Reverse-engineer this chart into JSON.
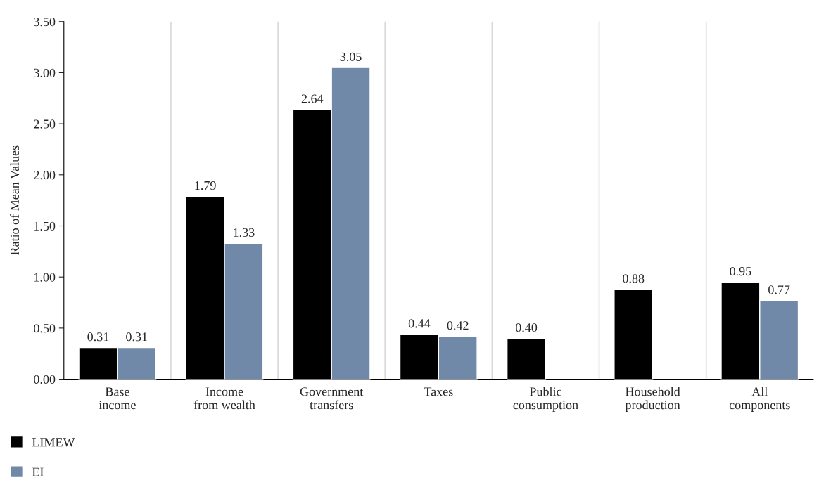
{
  "chart_data": {
    "type": "bar",
    "ylabel": "Ratio of Mean Values",
    "categories": [
      "Base\nincome",
      "Income\nfrom wealth",
      "Government\ntransfers",
      "Taxes",
      "Public\nconsumption",
      "Household\nproduction",
      "All\ncomponents"
    ],
    "series": [
      {
        "name": "LIMEW",
        "color": "#000000",
        "values": [
          0.31,
          1.79,
          2.64,
          0.44,
          0.4,
          0.88,
          0.95
        ],
        "value_labels": [
          "0.31",
          "1.79",
          "2.64",
          "0.44",
          "0.40",
          "0.88",
          "0.95"
        ]
      },
      {
        "name": "EI",
        "color": "#7189a8",
        "values": [
          0.31,
          1.33,
          3.05,
          0.42,
          null,
          null,
          0.77
        ],
        "value_labels": [
          "0.31",
          "1.33",
          "3.05",
          "0.42",
          null,
          null,
          "0.77"
        ]
      }
    ],
    "ylim": [
      0,
      3.5
    ],
    "yticks": [
      {
        "value": 0,
        "label": "0.00"
      },
      {
        "value": 0.5,
        "label": "0.50"
      },
      {
        "value": 1,
        "label": "1.00"
      },
      {
        "value": 1.5,
        "label": "1.50"
      },
      {
        "value": 2,
        "label": "2.00"
      },
      {
        "value": 2.5,
        "label": "2.50"
      },
      {
        "value": 3,
        "label": "3.00"
      },
      {
        "value": 3.5,
        "label": "3.50"
      }
    ],
    "grid": "x",
    "legend": "bottom left"
  }
}
